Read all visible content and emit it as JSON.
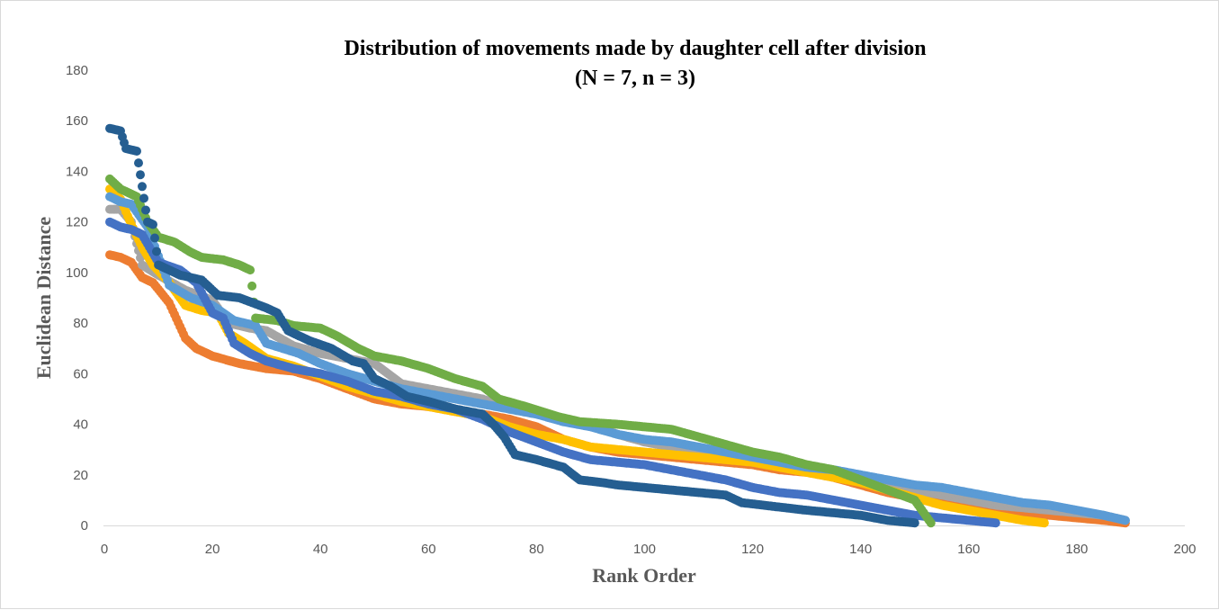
{
  "chart_data": {
    "type": "scatter",
    "title": [
      "Distribution of movements made by daughter cell after division",
      "(N = 7, n = 3)"
    ],
    "xlabel": "Rank Order",
    "ylabel": "Euclidean Distance",
    "xlim": [
      0,
      200
    ],
    "ylim": [
      0,
      180
    ],
    "x_ticks": [
      0,
      20,
      40,
      60,
      80,
      100,
      120,
      140,
      160,
      180,
      200
    ],
    "y_ticks": [
      0,
      20,
      40,
      60,
      80,
      100,
      120,
      140,
      160,
      180
    ],
    "grid": false,
    "legend": "none",
    "series": [
      {
        "color": "#ed7d31",
        "points": [
          [
            1,
            107
          ],
          [
            3,
            106
          ],
          [
            5,
            104
          ],
          [
            7,
            98
          ],
          [
            9,
            96
          ],
          [
            12,
            88
          ],
          [
            15,
            74
          ],
          [
            17,
            70
          ],
          [
            20,
            67
          ],
          [
            25,
            64
          ],
          [
            30,
            62
          ],
          [
            35,
            61
          ],
          [
            40,
            58
          ],
          [
            45,
            54
          ],
          [
            50,
            50
          ],
          [
            55,
            48
          ],
          [
            60,
            47
          ],
          [
            65,
            45
          ],
          [
            70,
            44
          ],
          [
            75,
            42
          ],
          [
            80,
            39
          ],
          [
            85,
            34
          ],
          [
            90,
            31
          ],
          [
            95,
            29
          ],
          [
            100,
            28
          ],
          [
            110,
            26
          ],
          [
            120,
            24
          ],
          [
            125,
            22
          ],
          [
            130,
            21
          ],
          [
            135,
            19
          ],
          [
            140,
            16
          ],
          [
            145,
            13
          ],
          [
            150,
            11
          ],
          [
            155,
            9
          ],
          [
            160,
            7
          ],
          [
            165,
            6
          ],
          [
            170,
            5
          ],
          [
            175,
            4
          ],
          [
            180,
            3
          ],
          [
            185,
            2
          ],
          [
            189,
            1
          ]
        ]
      },
      {
        "color": "#a5a5a5",
        "points": [
          [
            1,
            125
          ],
          [
            3,
            125
          ],
          [
            5,
            120
          ],
          [
            7,
            103
          ],
          [
            10,
            99
          ],
          [
            15,
            93
          ],
          [
            20,
            89
          ],
          [
            23,
            80
          ],
          [
            27,
            78
          ],
          [
            30,
            77
          ],
          [
            35,
            71
          ],
          [
            40,
            68
          ],
          [
            45,
            66
          ],
          [
            50,
            64
          ],
          [
            55,
            56
          ],
          [
            60,
            54
          ],
          [
            65,
            52
          ],
          [
            70,
            50
          ],
          [
            75,
            46
          ],
          [
            80,
            44
          ],
          [
            85,
            42
          ],
          [
            90,
            40
          ],
          [
            95,
            36
          ],
          [
            100,
            33
          ],
          [
            105,
            31
          ],
          [
            110,
            29
          ],
          [
            115,
            27
          ],
          [
            120,
            25
          ],
          [
            125,
            24
          ],
          [
            130,
            22
          ],
          [
            135,
            20
          ],
          [
            140,
            18
          ],
          [
            145,
            16
          ],
          [
            150,
            14
          ],
          [
            155,
            12
          ],
          [
            160,
            10
          ],
          [
            165,
            8
          ],
          [
            170,
            7
          ],
          [
            175,
            6
          ],
          [
            180,
            5
          ],
          [
            185,
            4
          ],
          [
            189,
            2
          ]
        ]
      },
      {
        "color": "#ffc000",
        "points": [
          [
            1,
            133
          ],
          [
            3,
            129
          ],
          [
            5,
            119
          ],
          [
            7,
            110
          ],
          [
            9,
            103
          ],
          [
            12,
            96
          ],
          [
            15,
            87
          ],
          [
            18,
            85
          ],
          [
            21,
            84
          ],
          [
            23,
            76
          ],
          [
            26,
            72
          ],
          [
            30,
            66
          ],
          [
            35,
            63
          ],
          [
            40,
            59
          ],
          [
            45,
            55
          ],
          [
            50,
            52
          ],
          [
            55,
            49
          ],
          [
            60,
            47
          ],
          [
            65,
            45
          ],
          [
            70,
            43
          ],
          [
            75,
            39
          ],
          [
            80,
            36
          ],
          [
            85,
            34
          ],
          [
            90,
            31
          ],
          [
            95,
            30
          ],
          [
            100,
            29
          ],
          [
            105,
            28
          ],
          [
            110,
            27
          ],
          [
            115,
            26
          ],
          [
            120,
            25
          ],
          [
            125,
            23
          ],
          [
            130,
            21
          ],
          [
            135,
            19
          ],
          [
            140,
            17
          ],
          [
            145,
            14
          ],
          [
            150,
            11
          ],
          [
            155,
            8
          ],
          [
            160,
            6
          ],
          [
            165,
            4
          ],
          [
            170,
            2
          ],
          [
            174,
            1
          ]
        ]
      },
      {
        "color": "#5b9bd5",
        "points": [
          [
            1,
            130
          ],
          [
            3,
            128
          ],
          [
            5,
            127
          ],
          [
            8,
            118
          ],
          [
            12,
            95
          ],
          [
            16,
            90
          ],
          [
            20,
            87
          ],
          [
            24,
            81
          ],
          [
            28,
            79
          ],
          [
            30,
            72
          ],
          [
            33,
            70
          ],
          [
            36,
            68
          ],
          [
            40,
            64
          ],
          [
            45,
            60
          ],
          [
            50,
            57
          ],
          [
            55,
            54
          ],
          [
            60,
            52
          ],
          [
            65,
            50
          ],
          [
            70,
            48
          ],
          [
            75,
            46
          ],
          [
            80,
            44
          ],
          [
            85,
            41
          ],
          [
            90,
            39
          ],
          [
            95,
            36
          ],
          [
            100,
            34
          ],
          [
            105,
            33
          ],
          [
            110,
            31
          ],
          [
            115,
            29
          ],
          [
            120,
            27
          ],
          [
            125,
            25
          ],
          [
            130,
            23
          ],
          [
            135,
            22
          ],
          [
            140,
            20
          ],
          [
            145,
            18
          ],
          [
            150,
            16
          ],
          [
            155,
            15
          ],
          [
            160,
            13
          ],
          [
            165,
            11
          ],
          [
            170,
            9
          ],
          [
            175,
            8
          ],
          [
            180,
            6
          ],
          [
            185,
            4
          ],
          [
            189,
            2
          ]
        ]
      },
      {
        "color": "#4472c4",
        "points": [
          [
            1,
            120
          ],
          [
            3,
            118
          ],
          [
            5,
            117
          ],
          [
            7,
            115
          ],
          [
            10,
            104
          ],
          [
            14,
            101
          ],
          [
            17,
            96
          ],
          [
            20,
            84
          ],
          [
            22,
            82
          ],
          [
            24,
            72
          ],
          [
            27,
            68
          ],
          [
            30,
            65
          ],
          [
            35,
            62
          ],
          [
            40,
            60
          ],
          [
            45,
            57
          ],
          [
            50,
            53
          ],
          [
            55,
            51
          ],
          [
            60,
            48
          ],
          [
            65,
            46
          ],
          [
            70,
            42
          ],
          [
            75,
            37
          ],
          [
            80,
            33
          ],
          [
            85,
            29
          ],
          [
            90,
            26
          ],
          [
            95,
            25
          ],
          [
            100,
            24
          ],
          [
            105,
            22
          ],
          [
            110,
            20
          ],
          [
            115,
            18
          ],
          [
            120,
            15
          ],
          [
            125,
            13
          ],
          [
            130,
            12
          ],
          [
            135,
            10
          ],
          [
            140,
            8
          ],
          [
            145,
            6
          ],
          [
            150,
            4
          ],
          [
            155,
            3
          ],
          [
            160,
            2
          ],
          [
            165,
            1
          ]
        ]
      },
      {
        "color": "#70ad47",
        "points": [
          [
            1,
            137
          ],
          [
            3,
            133
          ],
          [
            5,
            131
          ],
          [
            6,
            130
          ],
          [
            8,
            120
          ],
          [
            10,
            114
          ],
          [
            13,
            112
          ],
          [
            16,
            108
          ],
          [
            18,
            106
          ],
          [
            22,
            105
          ],
          [
            25,
            103
          ],
          [
            27,
            101
          ],
          [
            28,
            82
          ],
          [
            32,
            81
          ],
          [
            35,
            79
          ],
          [
            40,
            78
          ],
          [
            43,
            75
          ],
          [
            47,
            70
          ],
          [
            50,
            67
          ],
          [
            55,
            65
          ],
          [
            60,
            62
          ],
          [
            65,
            58
          ],
          [
            70,
            55
          ],
          [
            73,
            50
          ],
          [
            78,
            47
          ],
          [
            84,
            43
          ],
          [
            88,
            41
          ],
          [
            95,
            40
          ],
          [
            100,
            39
          ],
          [
            105,
            38
          ],
          [
            110,
            35
          ],
          [
            115,
            32
          ],
          [
            120,
            29
          ],
          [
            125,
            27
          ],
          [
            130,
            24
          ],
          [
            135,
            22
          ],
          [
            140,
            18
          ],
          [
            145,
            14
          ],
          [
            150,
            10
          ],
          [
            153,
            1
          ]
        ]
      },
      {
        "color": "#255e91",
        "points": [
          [
            1,
            157
          ],
          [
            3,
            156
          ],
          [
            4,
            149
          ],
          [
            6,
            148
          ],
          [
            8,
            120
          ],
          [
            9,
            119
          ],
          [
            10,
            103
          ],
          [
            14,
            99
          ],
          [
            18,
            97
          ],
          [
            21,
            91
          ],
          [
            25,
            90
          ],
          [
            30,
            86
          ],
          [
            32,
            84
          ],
          [
            34,
            77
          ],
          [
            38,
            73
          ],
          [
            42,
            70
          ],
          [
            46,
            65
          ],
          [
            48,
            64
          ],
          [
            50,
            58
          ],
          [
            53,
            55
          ],
          [
            56,
            51
          ],
          [
            60,
            49
          ],
          [
            65,
            46
          ],
          [
            70,
            44
          ],
          [
            72,
            40
          ],
          [
            74,
            35
          ],
          [
            76,
            28
          ],
          [
            80,
            26
          ],
          [
            85,
            23
          ],
          [
            88,
            18
          ],
          [
            92,
            17
          ],
          [
            95,
            16
          ],
          [
            100,
            15
          ],
          [
            105,
            14
          ],
          [
            110,
            13
          ],
          [
            115,
            12
          ],
          [
            118,
            9
          ],
          [
            122,
            8
          ],
          [
            126,
            7
          ],
          [
            130,
            6
          ],
          [
            135,
            5
          ],
          [
            140,
            4
          ],
          [
            145,
            2
          ],
          [
            150,
            1
          ]
        ]
      }
    ]
  }
}
